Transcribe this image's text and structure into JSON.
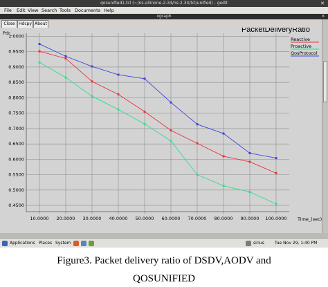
{
  "gedit": {
    "title": "qosunified1.tcl (~/ns-allinone-2.34/ns-2.34/tcl/unified) - gedit",
    "menu": [
      "File",
      "Edit",
      "View",
      "Search",
      "Tools",
      "Documents",
      "Help"
    ]
  },
  "xgraph": {
    "window_title": "xgraph",
    "buttons": {
      "close": "Close",
      "hdcpy": "Hdcpy",
      "about": "About"
    }
  },
  "chart_data": {
    "type": "line",
    "title": "PacketDeliveryRatio",
    "ylabel": "Pdr_",
    "xlabel": "Time_(sec)",
    "x": [
      10,
      20,
      30,
      40,
      50,
      60,
      70,
      80,
      90,
      100
    ],
    "x_tick_labels": [
      "10.0000",
      "20.0000",
      "30.0000",
      "40.0000",
      "50.0000",
      "60.0000",
      "70.0000",
      "80.0000",
      "90.0000",
      "100.0000"
    ],
    "y_ticks": [
      0.45,
      0.5,
      0.55,
      0.6,
      0.65,
      0.7,
      0.75,
      0.8,
      0.85,
      0.9,
      0.95,
      1.0
    ],
    "y_tick_labels": [
      "0.4500",
      "0.5000",
      "0.5500",
      "0.6000",
      "0.6500",
      "0.7000",
      "0.7500",
      "0.8000",
      "0.8500",
      "0.9000",
      "0.9500",
      "1.0000"
    ],
    "xlim": [
      5,
      105
    ],
    "ylim": [
      0.43,
      1.01
    ],
    "grid": true,
    "legend_position": "top-right",
    "series": [
      {
        "name": "Reactive",
        "color": "#e8323c",
        "values": [
          0.951,
          0.928,
          0.853,
          0.811,
          0.755,
          0.694,
          0.652,
          0.61,
          0.592,
          0.555
        ]
      },
      {
        "name": "Proactive",
        "color": "#2ee08a",
        "values": [
          0.915,
          0.866,
          0.805,
          0.762,
          0.715,
          0.66,
          0.55,
          0.514,
          0.494,
          0.455
        ]
      },
      {
        "name": "QosProtocol",
        "color": "#3c46dc",
        "values": [
          0.975,
          0.935,
          0.902,
          0.875,
          0.862,
          0.785,
          0.714,
          0.684,
          0.62,
          0.604
        ]
      }
    ]
  },
  "taskbar": {
    "applications": "Applications",
    "places": "Places",
    "system": "System",
    "user": "sirius",
    "datetime": "Tue Nov 29,  1:40 PM"
  },
  "caption": {
    "line1": "Figure3. Packet delivery ratio of DSDV,AODV and",
    "line2": "QOSUNIFIED"
  }
}
